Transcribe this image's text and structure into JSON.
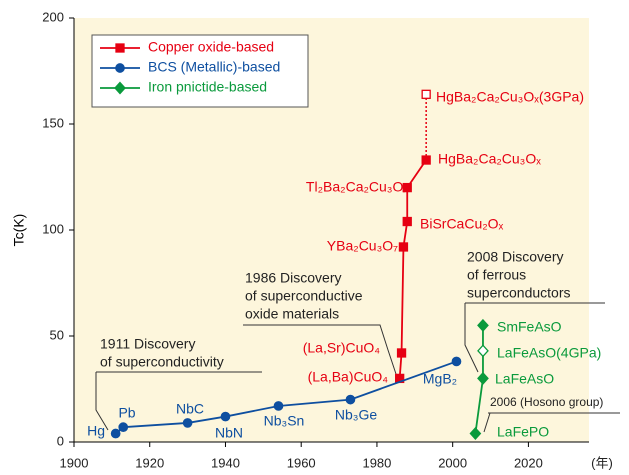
{
  "chart_data": {
    "type": "line",
    "y_label": "Tc(K)",
    "x_unit": "(年)",
    "xlim": [
      1900,
      2036
    ],
    "ylim": [
      0,
      200
    ],
    "xticks": [
      1900,
      1920,
      1940,
      1960,
      1980,
      2000,
      2020
    ],
    "yticks": [
      0,
      50,
      100,
      150,
      200
    ],
    "series": [
      {
        "name": "Copper oxide-based",
        "color": "#e60012",
        "marker": "square",
        "x": [
          1986,
          1986.5,
          1987,
          1988,
          1988,
          1993,
          1993
        ],
        "values": [
          30,
          42,
          92,
          104,
          120,
          133,
          164
        ],
        "labels": [
          "(La,Ba)CuO₄",
          "(La,Sr)CuO₄",
          "YBa₂Cu₃O₇",
          "BiSrCaCu₂Oₓ",
          "Tl₂Ba₂Ca₂Cu₃Oₓ",
          "HgBa₂Ca₂Cu₃Oₓ",
          "HgBa₂Ca₂Cu₃Oₓ(3GPa)"
        ],
        "open": [
          false,
          false,
          false,
          false,
          false,
          false,
          true
        ],
        "dotted": [
          false,
          false,
          false,
          false,
          false,
          false,
          true
        ]
      },
      {
        "name": "BCS (Metallic)-based",
        "color": "#0e4fa0",
        "marker": "circle",
        "x": [
          1911,
          1913,
          1930,
          1940,
          1954,
          1973,
          2001
        ],
        "values": [
          4,
          7,
          9,
          12,
          17,
          20,
          38
        ],
        "labels": [
          "Hg",
          "Pb",
          "NbC",
          "NbN",
          "Nb₃Sn",
          "Nb₃Ge",
          "MgB₂"
        ],
        "open": [
          false,
          false,
          false,
          false,
          false,
          false,
          false
        ],
        "dotted": [
          false,
          false,
          false,
          false,
          false,
          false,
          false
        ]
      },
      {
        "name": "Iron pnictide-based",
        "color": "#0a9a3c",
        "marker": "diamond",
        "x": [
          2006,
          2008,
          2008,
          2008
        ],
        "values": [
          4,
          30,
          43,
          55
        ],
        "labels": [
          "LaFePO",
          "LaFeAsO",
          "LaFeAsO(4GPa)",
          "SmFeAsO"
        ],
        "open": [
          false,
          false,
          true,
          false
        ],
        "dotted": [
          false,
          false,
          false,
          false
        ]
      }
    ],
    "annotations": [
      {
        "lines": [
          "1911 Discovery",
          "of superconductivity"
        ]
      },
      {
        "lines": [
          "1986 Discovery",
          "of superconductive",
          "oxide materials"
        ]
      },
      {
        "lines": [
          "2008 Discovery",
          "of ferrous",
          "superconductors"
        ]
      },
      {
        "lines": [
          "2006 (Hosono group)"
        ]
      }
    ]
  }
}
